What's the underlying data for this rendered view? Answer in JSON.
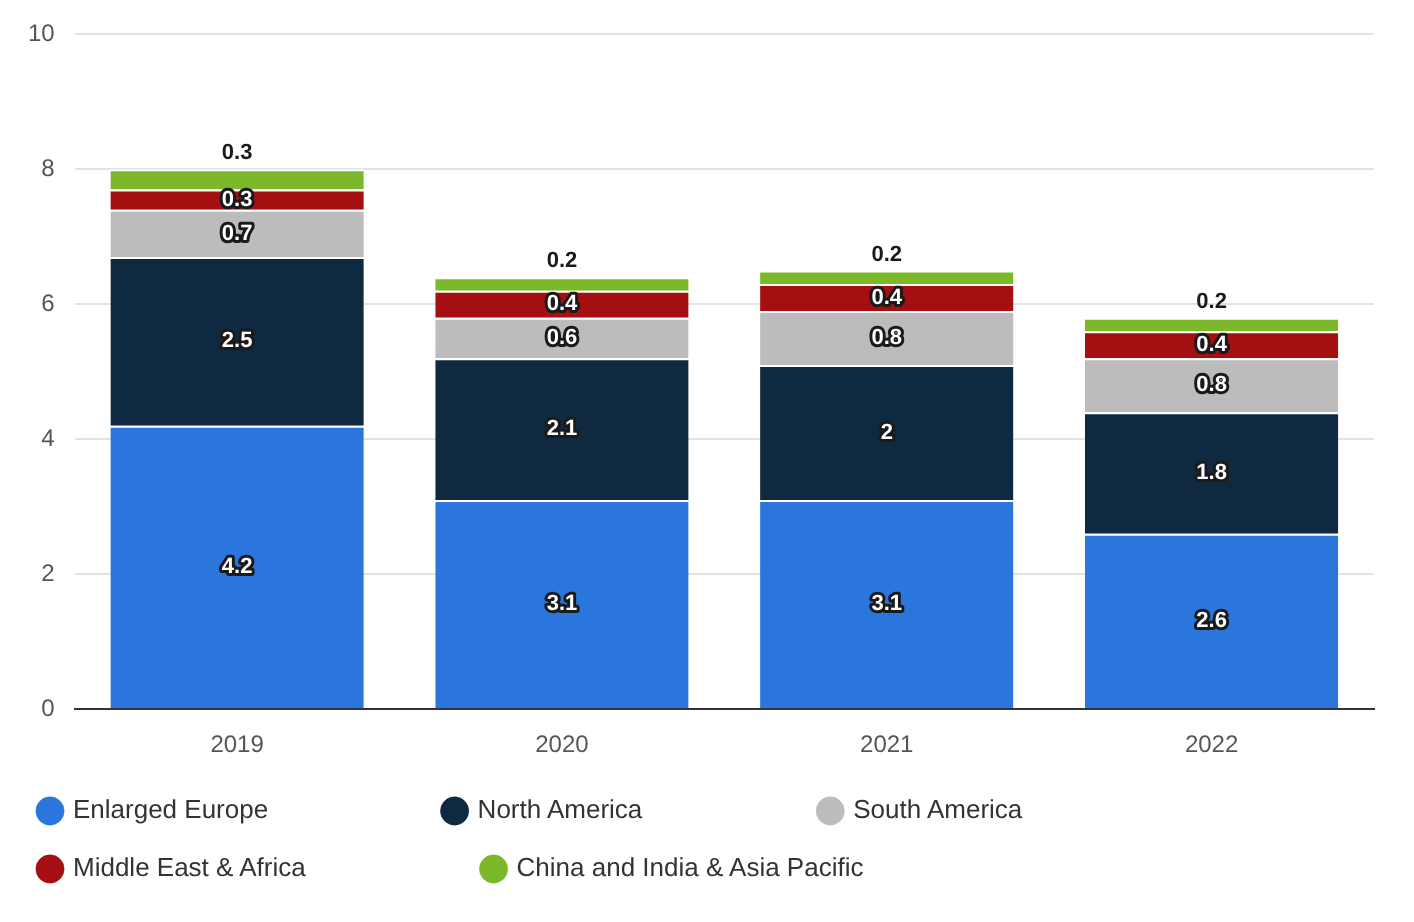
{
  "chart_data": {
    "type": "bar",
    "stacked": true,
    "categories": [
      "2019",
      "2020",
      "2021",
      "2022"
    ],
    "series": [
      {
        "name": "Enlarged Europe",
        "color": "#2a76dd",
        "values": [
          4.2,
          3.1,
          3.1,
          2.6
        ]
      },
      {
        "name": "North America",
        "color": "#0f2a40",
        "values": [
          2.5,
          2.1,
          2,
          1.8
        ]
      },
      {
        "name": "South America",
        "color": "#bcbcbc",
        "values": [
          0.7,
          0.6,
          0.8,
          0.8
        ]
      },
      {
        "name": "Middle East & Africa",
        "color": "#a50f12",
        "values": [
          0.3,
          0.4,
          0.4,
          0.4
        ]
      },
      {
        "name": "China and India & Asia Pacific",
        "color": "#7cb92a",
        "values": [
          0.3,
          0.2,
          0.2,
          0.2
        ]
      }
    ],
    "ylim": [
      0,
      10
    ],
    "yticks": [
      0,
      2,
      4,
      6,
      8,
      10
    ],
    "grid": "y",
    "legend": "bottom",
    "data_labels": true
  }
}
